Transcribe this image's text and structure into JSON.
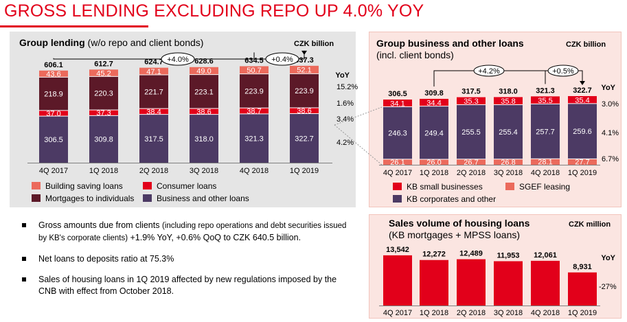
{
  "title": "GROSS LENDING EXCLUDING REPO UP 4.0% YOY",
  "colors": {
    "red": "#e2001a",
    "salmon": "#eb6a5c",
    "maroon": "#5c1928",
    "purple": "#4c3a64",
    "panel_grey": "#e5e5e5",
    "panel_pink": "#fbe5e1"
  },
  "left_panel": {
    "title": "Group lending",
    "title_note": "(w/o repo and client bonds)",
    "unit": "CZK billion",
    "yoy_label": "YoY",
    "growth_labels": [
      "+4.0%",
      "+0.4%"
    ],
    "legend": [
      "Building saving loans",
      "Consumer loans",
      "Mortgages to individuals",
      "Business and other loans"
    ]
  },
  "right_top_panel": {
    "title": "Group business and other loans",
    "subtitle": "(incl. client bonds)",
    "unit": "CZK billion",
    "yoy_label": "YoY",
    "growth_labels": [
      "+4.2%",
      "+0.5%"
    ],
    "legend": [
      "KB small businesses",
      "SGEF leasing",
      "KB corporates and other"
    ]
  },
  "right_bottom_panel": {
    "title": "Sales volume of housing loans",
    "subtitle": "(KB mortgages + MPSS loans)",
    "unit": "CZK million",
    "yoy_label": "YoY"
  },
  "bullets": [
    {
      "main": "Gross amounts due from clients ",
      "small": "(including repo operations and debt securities issued by KB's corporate clients)",
      "tail": " +1.9% YoY, +0.6% QoQ to CZK 640.5 billion."
    },
    {
      "main": "Net loans to deposits ratio at 75.3%",
      "small": "",
      "tail": ""
    },
    {
      "main": "Sales of housing loans in 1Q 2019 affected by new regulations imposed by the CNB with effect from October 2018.",
      "small": "",
      "tail": ""
    }
  ],
  "chart_data": [
    {
      "type": "bar",
      "stacked": true,
      "title": "Group lending",
      "categories": [
        "4Q 2017",
        "1Q 2018",
        "2Q 2018",
        "3Q 2018",
        "4Q 2018",
        "1Q 2019"
      ],
      "series": [
        {
          "name": "Business and other loans",
          "values": [
            306.5,
            309.8,
            317.5,
            318.0,
            321.3,
            322.7
          ],
          "yoy": "4.2%"
        },
        {
          "name": "Consumer loans",
          "values": [
            37.0,
            37.3,
            38.4,
            38.6,
            38.7,
            38.6
          ],
          "yoy": "3.4%"
        },
        {
          "name": "Mortgages to individuals",
          "values": [
            218.9,
            220.3,
            221.7,
            223.1,
            223.9,
            223.9
          ],
          "yoy": "1.6%"
        },
        {
          "name": "Building saving loans",
          "values": [
            43.6,
            45.2,
            47.1,
            49.0,
            50.7,
            52.1
          ],
          "yoy": "15.2%"
        }
      ],
      "totals": [
        606.1,
        612.7,
        624.7,
        628.6,
        634.5,
        637.3
      ]
    },
    {
      "type": "bar",
      "stacked": true,
      "title": "Group business and other loans",
      "categories": [
        "4Q 2017",
        "1Q 2018",
        "2Q 2018",
        "3Q 2018",
        "4Q 2018",
        "1Q 2019"
      ],
      "series": [
        {
          "name": "SGEF leasing",
          "values": [
            26.1,
            26.0,
            26.7,
            26.8,
            28.1,
            27.7
          ],
          "yoy": "6.7%"
        },
        {
          "name": "KB corporates and other",
          "values": [
            246.3,
            249.4,
            255.5,
            255.4,
            257.7,
            259.6
          ],
          "yoy": "4.1%"
        },
        {
          "name": "KB small businesses",
          "values": [
            34.1,
            34.4,
            35.3,
            35.8,
            35.5,
            35.4
          ],
          "yoy": "3.0%"
        }
      ],
      "totals": [
        306.5,
        309.8,
        317.5,
        318.0,
        321.3,
        322.7
      ]
    },
    {
      "type": "bar",
      "title": "Sales volume of housing loans",
      "categories": [
        "4Q 2017",
        "1Q 2018",
        "2Q 2018",
        "3Q 2018",
        "4Q 2018",
        "1Q 2019"
      ],
      "values": [
        13542,
        12272,
        12489,
        11953,
        12061,
        8931
      ],
      "value_labels": [
        "13,542",
        "12,272",
        "12,489",
        "11,953",
        "12,061",
        "8,931"
      ],
      "yoy": "-27%"
    }
  ]
}
